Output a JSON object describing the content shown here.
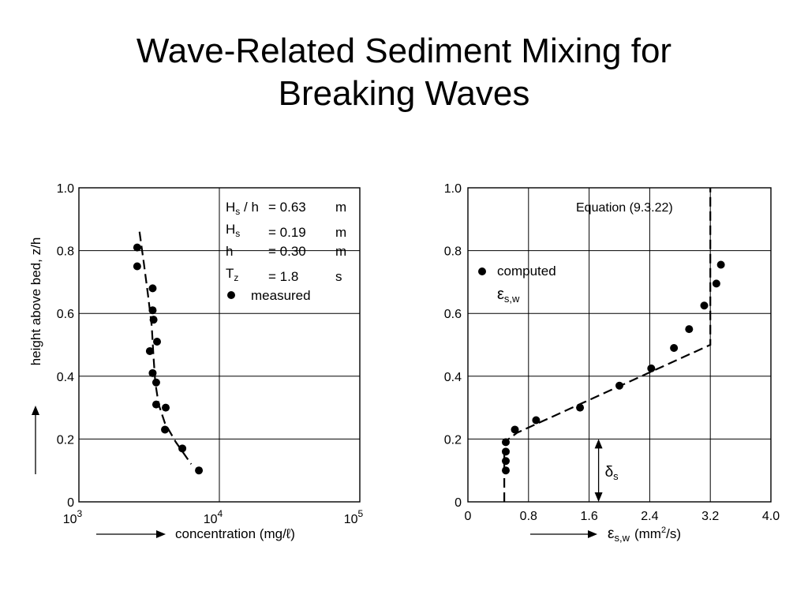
{
  "slide": {
    "title_line1": "Wave-Related Sediment Mixing for",
    "title_line2": "Breaking Waves"
  },
  "chart_data": [
    {
      "type": "scatter",
      "xscale": "log",
      "xlim": [
        1000,
        100000
      ],
      "ylim": [
        0,
        1.0
      ],
      "grid": true,
      "xticks": [
        1000,
        10000,
        100000
      ],
      "xtick_labels": [
        [
          "10",
          "3"
        ],
        [
          "10",
          "4"
        ],
        [
          "10",
          "5"
        ]
      ],
      "yticks": [
        0,
        0.2,
        0.4,
        0.6,
        0.8,
        1.0
      ],
      "ytick_labels": [
        "0",
        "0.2",
        "0.4",
        "0.6",
        "0.8",
        "1.0"
      ],
      "xlabel": "concentration (mg/ℓ)",
      "ylabel": "height above bed, z/h",
      "legend_position": "top-right",
      "params": [
        {
          "sym": "H",
          "sub": "s",
          "suffix": " / h",
          "eq": "= 0.63",
          "unit": "m"
        },
        {
          "sym": "H",
          "sub": "s",
          "suffix": "",
          "eq": "= 0.19",
          "unit": "m"
        },
        {
          "sym": "h",
          "sub": "",
          "suffix": "",
          "eq": "= 0.30",
          "unit": "m"
        },
        {
          "sym": "T",
          "sub": "z",
          "suffix": "",
          "eq": "= 1.8",
          "unit": "s"
        }
      ],
      "series": [
        {
          "name": "measured",
          "kind": "points",
          "x": [
            2600,
            2600,
            3350,
            3350,
            3400,
            3200,
            3600,
            3350,
            3550,
            3550,
            4150,
            4100,
            5450,
            7150
          ],
          "y": [
            0.81,
            0.75,
            0.68,
            0.61,
            0.58,
            0.48,
            0.51,
            0.41,
            0.38,
            0.31,
            0.3,
            0.23,
            0.17,
            0.1
          ]
        },
        {
          "name": "",
          "kind": "dashed",
          "x": [
            2700,
            2900,
            3100,
            3300,
            3400,
            3500,
            3700,
            4100,
            4900,
            6300
          ],
          "y": [
            0.86,
            0.76,
            0.66,
            0.56,
            0.46,
            0.38,
            0.31,
            0.25,
            0.19,
            0.12
          ]
        }
      ]
    },
    {
      "type": "scatter",
      "xlim": [
        0,
        4.0
      ],
      "ylim": [
        0,
        1.0
      ],
      "grid": true,
      "xticks": [
        0,
        0.8,
        1.6,
        2.4,
        3.2,
        4.0
      ],
      "xtick_labels": [
        "0",
        "0.8",
        "1.6",
        "2.4",
        "3.2",
        "4.0"
      ],
      "yticks": [
        0,
        0.2,
        0.4,
        0.6,
        0.8,
        1.0
      ],
      "ytick_labels": [
        "0",
        "0.2",
        "0.4",
        "0.6",
        "0.8",
        "1.0"
      ],
      "xlabel_symbol": "ε",
      "xlabel_sub": "s,w",
      "xlabel_unit_pre": "(mm",
      "xlabel_unit_sup": "2",
      "xlabel_unit_post": "/s)",
      "legend_label": "computed",
      "legend_symbol": "ε",
      "legend_sub": "s,w",
      "legend_position": "top-left",
      "equation_label": "Equation (9.3.22)",
      "delta_symbol": "δ",
      "delta_sub": "s",
      "delta_s": 0.2,
      "series": [
        {
          "name": "computed",
          "kind": "points",
          "x": [
            0.5,
            0.5,
            0.5,
            0.5,
            0.62,
            0.9,
            1.48,
            2.0,
            2.42,
            2.72,
            2.92,
            3.12,
            3.28,
            3.34
          ],
          "y": [
            0.19,
            0.16,
            0.13,
            0.1,
            0.23,
            0.26,
            0.3,
            0.37,
            0.425,
            0.49,
            0.55,
            0.625,
            0.695,
            0.755
          ]
        },
        {
          "name": "Equation (9.3.22)",
          "kind": "dashed",
          "x": [
            0.48,
            0.48,
            0.65,
            3.2,
            3.2
          ],
          "y": [
            0.0,
            0.19,
            0.22,
            0.5,
            1.0
          ]
        }
      ]
    }
  ]
}
